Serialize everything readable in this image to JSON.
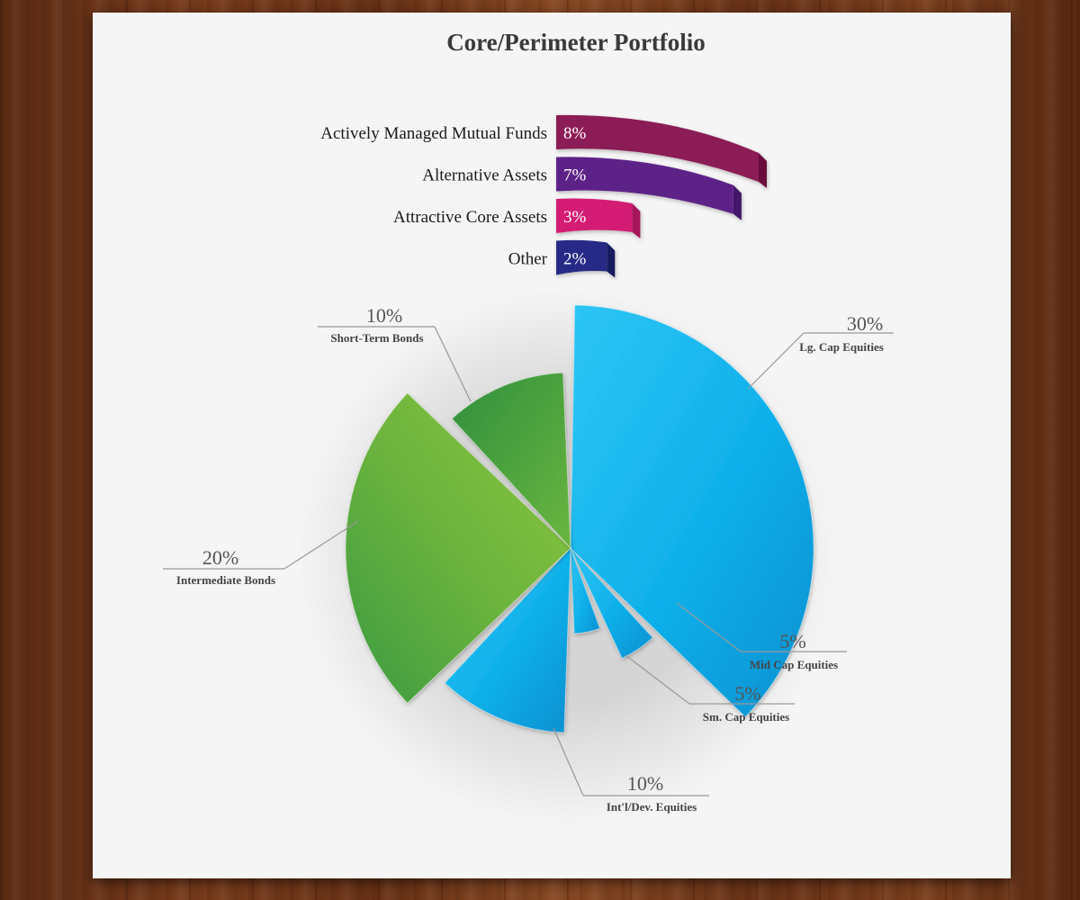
{
  "chart_data": [
    {
      "type": "bar",
      "title": "Core/Perimeter Portfolio",
      "categories": [
        "Actively Managed Mutual Funds",
        "Alternative Assets",
        "Attractive Core Assets",
        "Other"
      ],
      "values": [
        8,
        7,
        3,
        2
      ],
      "value_labels": [
        "8%",
        "7%",
        "3%",
        "2%"
      ],
      "colors": [
        "#8c1a54",
        "#5d2488",
        "#d41f74",
        "#262a86"
      ],
      "side_colors": [
        "#6b0f3d",
        "#431668",
        "#a5145a",
        "#181b5e"
      ]
    },
    {
      "type": "pie",
      "slices": [
        {
          "label": "Lg. Cap Equities",
          "value": 30,
          "value_label": "30%",
          "color": "#1aa9e3"
        },
        {
          "label": "Mid Cap Equities",
          "value": 5,
          "value_label": "5%",
          "color": "#1aa9e3"
        },
        {
          "label": "Sm. Cap Equities",
          "value": 5,
          "value_label": "5%",
          "color": "#1aa9e3"
        },
        {
          "label": "Int'l/Dev. Equities",
          "value": 10,
          "value_label": "10%",
          "color": "#1aa9e3"
        },
        {
          "label": "Intermediate  Bonds",
          "value": 20,
          "value_label": "20%",
          "color": "#6fb83e"
        },
        {
          "label": "Short-Term Bonds",
          "value": 10,
          "value_label": "10%",
          "color": "#4fa040"
        }
      ]
    }
  ]
}
